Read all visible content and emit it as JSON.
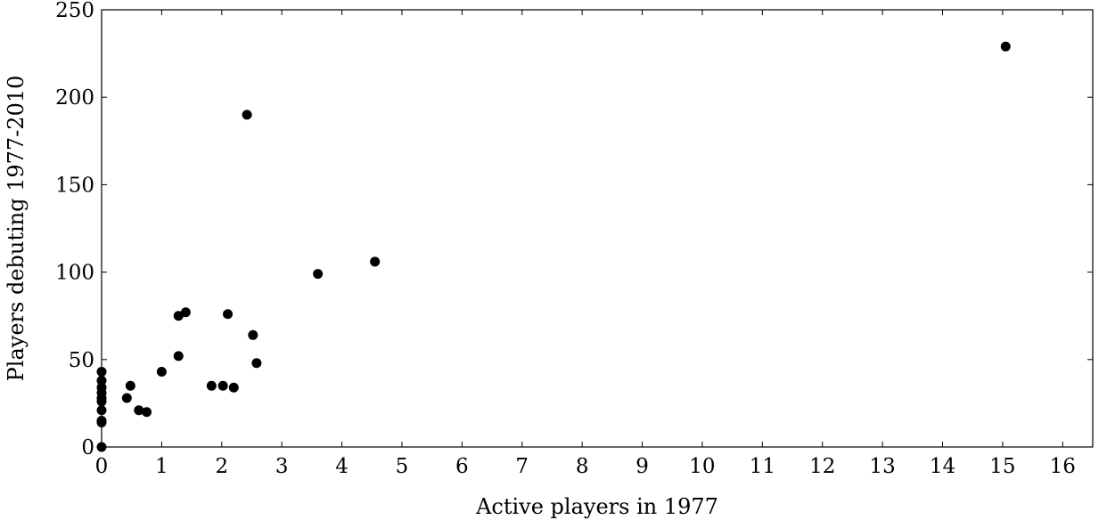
{
  "chart_data": {
    "type": "scatter",
    "title": "",
    "xlabel": "Active players in 1977",
    "ylabel": "Players debuting 1977-2010",
    "xlim": [
      0,
      16.5
    ],
    "ylim": [
      0,
      250
    ],
    "xticks": [
      0,
      1,
      2,
      3,
      4,
      5,
      6,
      7,
      8,
      9,
      10,
      11,
      12,
      13,
      14,
      15,
      16
    ],
    "yticks": [
      0,
      50,
      100,
      150,
      200,
      250
    ],
    "grid": false,
    "legend": "none",
    "marker_color": "#000000",
    "points": [
      {
        "x": 0,
        "y": 0
      },
      {
        "x": 0,
        "y": 14
      },
      {
        "x": 0,
        "y": 15
      },
      {
        "x": 0,
        "y": 21
      },
      {
        "x": 0,
        "y": 26
      },
      {
        "x": 0,
        "y": 28
      },
      {
        "x": 0,
        "y": 31
      },
      {
        "x": 0,
        "y": 34
      },
      {
        "x": 0,
        "y": 38
      },
      {
        "x": 0,
        "y": 43
      },
      {
        "x": 0.42,
        "y": 28
      },
      {
        "x": 0.48,
        "y": 35
      },
      {
        "x": 0.62,
        "y": 21
      },
      {
        "x": 0.75,
        "y": 20
      },
      {
        "x": 1.0,
        "y": 43
      },
      {
        "x": 1.28,
        "y": 52
      },
      {
        "x": 1.28,
        "y": 75
      },
      {
        "x": 1.4,
        "y": 77
      },
      {
        "x": 1.83,
        "y": 35
      },
      {
        "x": 2.02,
        "y": 35
      },
      {
        "x": 2.1,
        "y": 76
      },
      {
        "x": 2.2,
        "y": 34
      },
      {
        "x": 2.42,
        "y": 190
      },
      {
        "x": 2.52,
        "y": 64
      },
      {
        "x": 2.58,
        "y": 48
      },
      {
        "x": 3.6,
        "y": 99
      },
      {
        "x": 4.55,
        "y": 106
      },
      {
        "x": 15.05,
        "y": 229
      }
    ]
  }
}
